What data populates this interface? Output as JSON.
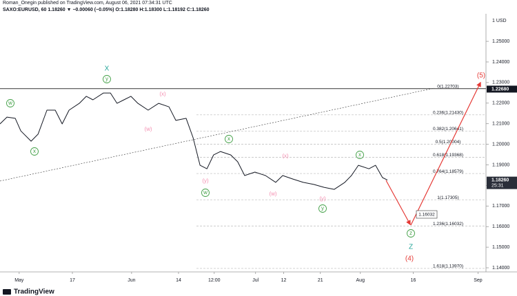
{
  "chart_data": {
    "type": "line",
    "title": "Roman_Onegin published on TradingView.com, August 06, 2021 07:34:31 UTC",
    "subtitle": "SAXO:EURUSD, 60  1.18260 ▼ −0.00060 (−0.05%)  O:1.18280 H:1.18300 L:1.18192 C:1.18260",
    "axis_unit": "1 USD",
    "x": [
      0,
      2.1,
      4.6,
      6.3,
      9.4,
      11.5,
      14.2,
      16.7,
      18.8,
      20.9,
      24,
      26.1,
      28.1,
      31.3,
      33.4,
      35.4,
      37.5,
      39.6,
      41.7,
      44.8,
      48,
      51.1,
      53.2,
      56.3,
      58.4,
      60.5,
      62.6,
      64.6,
      66.7,
      69.8,
      71.9,
      74,
      77.1,
      80.3,
      83.4,
      85.5,
      88.6,
      91.7,
      94.9,
      98,
      101.1,
      104.3,
      106.3,
      108.4,
      111.6,
      113.6,
      115.7,
      117.2
    ],
    "series": [
      {
        "name": "SAXO:EURUSD",
        "color": "#131722",
        "values": [
          1.2099,
          1.2132,
          1.2126,
          1.2065,
          1.2015,
          1.2049,
          1.2166,
          1.2166,
          1.2099,
          1.2166,
          1.2199,
          1.2233,
          1.2216,
          1.2249,
          1.2249,
          1.2199,
          1.2216,
          1.2233,
          1.2199,
          1.2166,
          1.2199,
          1.2182,
          1.2116,
          1.2126,
          1.2032,
          1.1898,
          1.1881,
          1.1948,
          1.1965,
          1.1948,
          1.1915,
          1.1848,
          1.1865,
          1.1848,
          1.1815,
          1.1848,
          1.1831,
          1.1815,
          1.1805,
          1.1791,
          1.1781,
          1.1815,
          1.1848,
          1.1898,
          1.1881,
          1.1898,
          1.1838,
          1.1826
        ]
      }
    ],
    "xlim": [
      0,
      147
    ],
    "xticks": [
      {
        "value": 5.8,
        "label": "May"
      },
      {
        "value": 21.9,
        "label": "17"
      },
      {
        "value": 39.8,
        "label": "Jun"
      },
      {
        "value": 54,
        "label": "14"
      },
      {
        "value": 64.8,
        "label": "12:00"
      },
      {
        "value": 77.3,
        "label": "Jul"
      },
      {
        "value": 85.8,
        "label": "12"
      },
      {
        "value": 96.9,
        "label": "21"
      },
      {
        "value": 109,
        "label": "Aug"
      },
      {
        "value": 125,
        "label": "16"
      },
      {
        "value": 144.6,
        "label": "Sep"
      }
    ],
    "ylim": [
      1.138,
      1.2634
    ],
    "yticks": [
      {
        "value": 1.14,
        "label": "1.14000"
      },
      {
        "value": 1.15,
        "label": "1.15000"
      },
      {
        "value": 1.16,
        "label": "1.16000"
      },
      {
        "value": 1.17,
        "label": "1.17000"
      },
      {
        "value": 1.18,
        "label": "1.18000"
      },
      {
        "value": 1.19,
        "label": "1.19000"
      },
      {
        "value": 1.2,
        "label": "1.20000"
      },
      {
        "value": 1.21,
        "label": "1.21000"
      },
      {
        "value": 1.22,
        "label": "1.22000"
      },
      {
        "value": 1.23,
        "label": "1.23000"
      },
      {
        "value": 1.24,
        "label": "1.24000"
      },
      {
        "value": 1.25,
        "label": "1.25000"
      }
    ],
    "fib_levels": [
      {
        "label": "0(1.22703)",
        "value": 1.22703
      },
      {
        "label": "0.236(1.21430)",
        "value": 1.2143
      },
      {
        "label": "0.382(1.20641)",
        "value": 1.20641
      },
      {
        "label": "0.5(1.20004)",
        "value": 1.20004
      },
      {
        "label": "0.618(1.19368)",
        "value": 1.19368
      },
      {
        "label": "0.764(1.18579)",
        "value": 1.18579
      },
      {
        "label": "1(1.17305)",
        "value": 1.17305
      },
      {
        "label": "1.236(1.16032)",
        "value": 1.16032
      },
      {
        "label": "1.618(1.13970)",
        "value": 1.1397
      }
    ],
    "price_markers": [
      {
        "label": "1.22680",
        "value": 1.2268
      },
      {
        "label": "1.18260",
        "value": 1.1826
      }
    ],
    "countdown": "25:31",
    "target_label": "1.16032",
    "circled_labels": [
      "w",
      "x",
      "y",
      "x",
      "w",
      "x",
      "y",
      "z"
    ],
    "minor_labels": [
      "(x)",
      "(w)",
      "(y)",
      "(x)",
      "(w)",
      "(y)"
    ],
    "major_labels": [
      "X",
      "Z"
    ],
    "impulse_labels": [
      "(5)",
      "(4)"
    ],
    "footer": "TradingView"
  }
}
